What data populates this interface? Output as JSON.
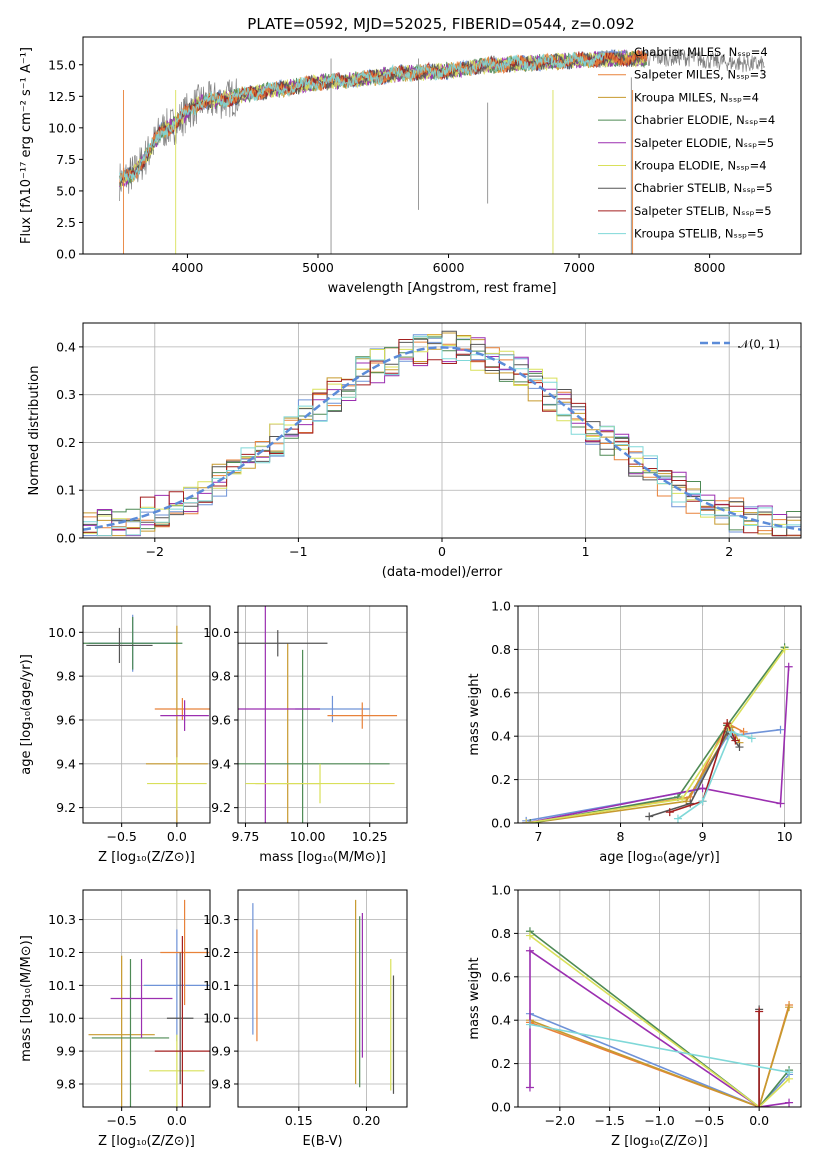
{
  "figure_title": "PLATE=0592, MJD=52025, FIBERID=0544, z=0.092",
  "series_colors": [
    "#6f93d8",
    "#e8823a",
    "#c79a2e",
    "#4e8a55",
    "#9b2fb0",
    "#d9e05a",
    "#555555",
    "#a31f1f",
    "#7fd8d8"
  ],
  "chart_data": [
    {
      "id": "spectrum",
      "type": "line",
      "xlabel": "wavelength [Angstrom, rest frame]",
      "ylabel": "Flux [fλ10⁻¹⁷ erg cm⁻² s⁻¹ A⁻¹]",
      "xlim": [
        3200,
        8700
      ],
      "ylim": [
        0,
        17.2
      ],
      "xticks": [
        4000,
        5000,
        6000,
        7000,
        8000
      ],
      "yticks": [
        0.0,
        2.5,
        5.0,
        7.5,
        10.0,
        12.5,
        15.0
      ],
      "data_color": "#808080",
      "data_range": [
        3480,
        8420
      ],
      "model_shape_x": [
        3480,
        3600,
        3700,
        3800,
        3900,
        4000,
        4100,
        4300,
        4500,
        4800,
        5000,
        5300,
        5600,
        6000,
        6300,
        6600,
        6900,
        7200,
        7500,
        7800,
        8100,
        8420
      ],
      "model_shape_y": [
        5.8,
        6.5,
        8.0,
        9.8,
        10.2,
        11.3,
        12.0,
        12.3,
        12.8,
        13.2,
        13.6,
        13.8,
        14.3,
        14.5,
        15.0,
        15.1,
        15.3,
        15.5,
        15.5,
        15.6,
        15.2,
        15.0
      ],
      "legend": [
        "Chabrier MILES, Nₛₛₚ=4",
        "Salpeter MILES, Nₛₛₚ=3",
        "Kroupa MILES, Nₛₛₚ=4",
        "Chabrier ELODIE, Nₛₛₚ=4",
        "Salpeter ELODIE, Nₛₛₚ=5",
        "Kroupa ELODIE, Nₛₛₚ=4",
        "Chabrier STELIB, Nₛₛₚ=5",
        "Salpeter STELIB, Nₛₛₚ=5",
        "Kroupa STELIB, Nₛₛₚ=5"
      ]
    },
    {
      "id": "residuals",
      "type": "line",
      "xlabel": "(data-model)/error",
      "ylabel": "Normed distribution",
      "xlim": [
        -2.5,
        2.5
      ],
      "ylim": [
        0,
        0.45
      ],
      "xticks": [
        -2,
        -1,
        0,
        1,
        2
      ],
      "xtick_labels": [
        "−2",
        "−1",
        "0",
        "1",
        "2"
      ],
      "yticks": [
        0.0,
        0.1,
        0.2,
        0.3,
        0.4
      ],
      "gaussian_label": "𝒩(0, 1)",
      "gaussian_color": "#5b8bd8",
      "bin_width": 0.1
    },
    {
      "id": "age-vs-Z",
      "type": "scatter",
      "xlabel": "Z [log₁₀(Z/Z⊙)]",
      "ylabel": "age  [log₁₀(age/yr)]",
      "xlim": [
        -0.85,
        0.3
      ],
      "ylim": [
        9.13,
        10.12
      ],
      "xticks": [
        -0.5,
        0.0
      ],
      "xtick_labels": [
        "−0.5",
        "0.0"
      ],
      "yticks": [
        9.2,
        9.4,
        9.6,
        9.8,
        10.0
      ],
      "points": [
        {
          "x": -0.4,
          "xerr": 0.4,
          "y": 9.95,
          "yerr": 0.13
        },
        {
          "x": 0.05,
          "xerr": 0.25,
          "y": 9.65,
          "yerr": 0.05
        },
        {
          "x": 0.0,
          "xerr": 0.28,
          "y": 9.4,
          "yerr": 0.63
        },
        {
          "x": -0.4,
          "xerr": 0.45,
          "y": 9.95,
          "yerr": 0.12
        },
        {
          "x": 0.07,
          "xerr": 0.22,
          "y": 9.62,
          "yerr": 0.07
        },
        {
          "x": 0.0,
          "xerr": 0.27,
          "y": 9.31,
          "yerr": 0.12
        },
        {
          "x": -0.52,
          "xerr": 0.3,
          "y": 9.94,
          "yerr": 0.08
        }
      ]
    },
    {
      "id": "age-vs-mass",
      "type": "scatter",
      "xlabel": "mass [log₁₀(M/M⊙)]",
      "ylabel": "",
      "xlim": [
        9.72,
        10.4
      ],
      "ylim": [
        9.13,
        10.12
      ],
      "xticks": [
        9.75,
        10.0,
        10.25
      ],
      "xtick_labels": [
        "9.75",
        "10.00",
        "10.25"
      ],
      "yticks": [
        9.2,
        9.4,
        9.6,
        9.8,
        10.0
      ],
      "points": [
        {
          "x": 10.1,
          "xerr": 0.15,
          "y": 9.65,
          "yerr": 0.06
        },
        {
          "x": 10.22,
          "xerr": 0.14,
          "y": 9.62,
          "yerr": 0.06
        },
        {
          "x": 9.92,
          "xerr": 0.13,
          "y": 9.31,
          "yerr": 0.64
        },
        {
          "x": 9.98,
          "xerr": 0.35,
          "y": 9.4,
          "yerr": 0.52
        },
        {
          "x": 9.83,
          "xerr": 0.22,
          "y": 9.65,
          "yerr": 0.55
        },
        {
          "x": 10.05,
          "xerr": 0.3,
          "y": 9.31,
          "yerr": 0.09
        },
        {
          "x": 9.88,
          "xerr": 0.2,
          "y": 9.95,
          "yerr": 0.06
        }
      ]
    },
    {
      "id": "massweight-vs-age",
      "type": "line",
      "xlabel": "age  [log₁₀(age/yr)]",
      "ylabel": "mass weight",
      "xlim": [
        6.75,
        10.2
      ],
      "ylim": [
        0,
        1.0
      ],
      "xticks": [
        7,
        8,
        9,
        10
      ],
      "yticks": [
        0.0,
        0.2,
        0.4,
        0.6,
        0.8,
        1.0
      ],
      "series": [
        {
          "x": [
            6.85,
            8.9,
            9.3,
            9.95
          ],
          "y": [
            0.01,
            0.15,
            0.4,
            0.43
          ]
        },
        {
          "x": [
            6.85,
            8.85,
            9.3,
            9.5
          ],
          "y": [
            0.0,
            0.12,
            0.46,
            0.42
          ]
        },
        {
          "x": [
            6.9,
            8.8,
            9.35,
            9.45
          ],
          "y": [
            0.0,
            0.1,
            0.44,
            0.37
          ]
        },
        {
          "x": [
            6.9,
            8.7,
            9.3,
            10.0
          ],
          "y": [
            0.0,
            0.12,
            0.45,
            0.81
          ]
        },
        {
          "x": [
            6.85,
            9.0,
            9.95,
            10.05
          ],
          "y": [
            0.0,
            0.16,
            0.09,
            0.72
          ]
        },
        {
          "x": [
            6.85,
            8.75,
            9.3,
            10.0
          ],
          "y": [
            0.0,
            0.11,
            0.43,
            0.8
          ]
        },
        {
          "x": [
            8.35,
            8.85,
            9.3,
            9.45
          ],
          "y": [
            0.03,
            0.09,
            0.42,
            0.35
          ]
        },
        {
          "x": [
            8.6,
            9.0,
            9.3,
            9.4
          ],
          "y": [
            0.05,
            0.1,
            0.46,
            0.38
          ]
        },
        {
          "x": [
            8.7,
            9.0,
            9.35,
            9.6
          ],
          "y": [
            0.02,
            0.1,
            0.42,
            0.39
          ]
        }
      ]
    },
    {
      "id": "mass-vs-Z",
      "type": "scatter",
      "xlabel": "Z [log₁₀(Z/Z⊙)]",
      "ylabel": "mass [log₁₀(M/M⊙)]",
      "xlim": [
        -0.85,
        0.3
      ],
      "ylim": [
        9.73,
        10.39
      ],
      "xticks": [
        -0.5,
        0.0
      ],
      "xtick_labels": [
        "−0.5",
        "0.0"
      ],
      "yticks": [
        9.8,
        9.9,
        10.0,
        10.1,
        10.2,
        10.3
      ],
      "points": [
        {
          "x": 0.0,
          "xerr": 0.3,
          "y": 10.1,
          "yerr": 0.17
        },
        {
          "x": 0.07,
          "xerr": 0.22,
          "y": 10.2,
          "yerr": 0.16
        },
        {
          "x": -0.5,
          "xerr": 0.3,
          "y": 9.95,
          "yerr": 0.24
        },
        {
          "x": -0.42,
          "xerr": 0.35,
          "y": 9.94,
          "yerr": 0.24
        },
        {
          "x": -0.32,
          "xerr": 0.28,
          "y": 10.06,
          "yerr": 0.12
        },
        {
          "x": 0.0,
          "xerr": 0.25,
          "y": 9.84,
          "yerr": 0.11
        },
        {
          "x": 0.03,
          "xerr": 0.12,
          "y": 10.0,
          "yerr": 0.2
        },
        {
          "x": 0.05,
          "xerr": 0.25,
          "y": 9.9,
          "yerr": 0.35
        }
      ]
    },
    {
      "id": "mass-vs-EBV",
      "type": "scatter",
      "xlabel": "E(B-V)",
      "ylabel": "",
      "xlim": [
        0.105,
        0.23
      ],
      "ylim": [
        9.73,
        10.39
      ],
      "xticks": [
        0.15,
        0.2
      ],
      "xtick_labels": [
        "0.15",
        "0.20"
      ],
      "yticks": [
        9.8,
        9.9,
        10.0,
        10.1,
        10.2,
        10.3
      ],
      "points": [
        {
          "x": 0.116,
          "y": 10.15,
          "yerr": 0.2
        },
        {
          "x": 0.119,
          "y": 10.1,
          "yerr": 0.17
        },
        {
          "x": 0.192,
          "y": 10.08,
          "yerr": 0.28
        },
        {
          "x": 0.195,
          "y": 10.05,
          "yerr": 0.26
        },
        {
          "x": 0.197,
          "y": 10.1,
          "yerr": 0.22
        },
        {
          "x": 0.218,
          "y": 9.98,
          "yerr": 0.2
        },
        {
          "x": 0.22,
          "y": 9.95,
          "yerr": 0.18
        }
      ]
    },
    {
      "id": "massweight-vs-Z",
      "type": "line",
      "xlabel": "Z [log₁₀(Z/Z⊙)]",
      "ylabel": "mass weight",
      "xlim": [
        -2.42,
        0.42
      ],
      "ylim": [
        0,
        1.0
      ],
      "xticks": [
        -2.0,
        -1.5,
        -1.0,
        -0.5,
        0.0
      ],
      "xtick_labels": [
        "−2.0",
        "−1.5",
        "−1.0",
        "−0.5",
        "0.0"
      ],
      "yticks": [
        0.0,
        0.2,
        0.4,
        0.6,
        0.8,
        1.0
      ],
      "series": [
        {
          "x": [
            -2.3,
            0.0,
            0.3
          ],
          "y": [
            0.43,
            0.0,
            0.15
          ]
        },
        {
          "x": [
            -2.3,
            0.0,
            0.3
          ],
          "y": [
            0.39,
            0.0,
            0.47
          ]
        },
        {
          "x": [
            -2.3,
            0.0,
            0.3
          ],
          "y": [
            0.4,
            0.0,
            0.46
          ]
        },
        {
          "x": [
            -2.3,
            0.0,
            0.3
          ],
          "y": [
            0.81,
            0.0,
            0.17
          ]
        },
        {
          "x": [
            -2.3,
            -2.3,
            0.0,
            0.3
          ],
          "y": [
            0.09,
            0.72,
            0.0,
            0.02
          ]
        },
        {
          "x": [
            -2.3,
            0.0,
            0.3
          ],
          "y": [
            0.79,
            0.0,
            0.13
          ]
        },
        {
          "x": [
            0.0,
            0.0
          ],
          "y": [
            0.0,
            0.45
          ]
        },
        {
          "x": [
            0.0,
            0.0
          ],
          "y": [
            0.0,
            0.44
          ]
        },
        {
          "x": [
            -2.3,
            0.3
          ],
          "y": [
            0.38,
            0.16
          ]
        }
      ]
    }
  ]
}
